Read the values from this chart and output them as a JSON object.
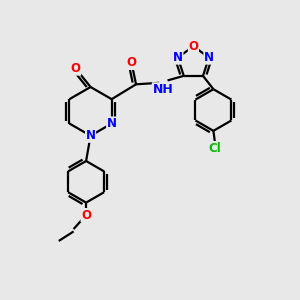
{
  "background_color": "#e8e8e8",
  "bond_color": "#000000",
  "bond_width": 1.6,
  "atom_colors": {
    "N": "#0000ff",
    "O": "#ff0000",
    "Cl": "#00bb00",
    "H": "#008888",
    "C": "#000000"
  },
  "font_size": 8.5,
  "fig_w": 3.0,
  "fig_h": 3.0,
  "dpi": 100,
  "xlim": [
    0,
    10
  ],
  "ylim": [
    0,
    10
  ]
}
